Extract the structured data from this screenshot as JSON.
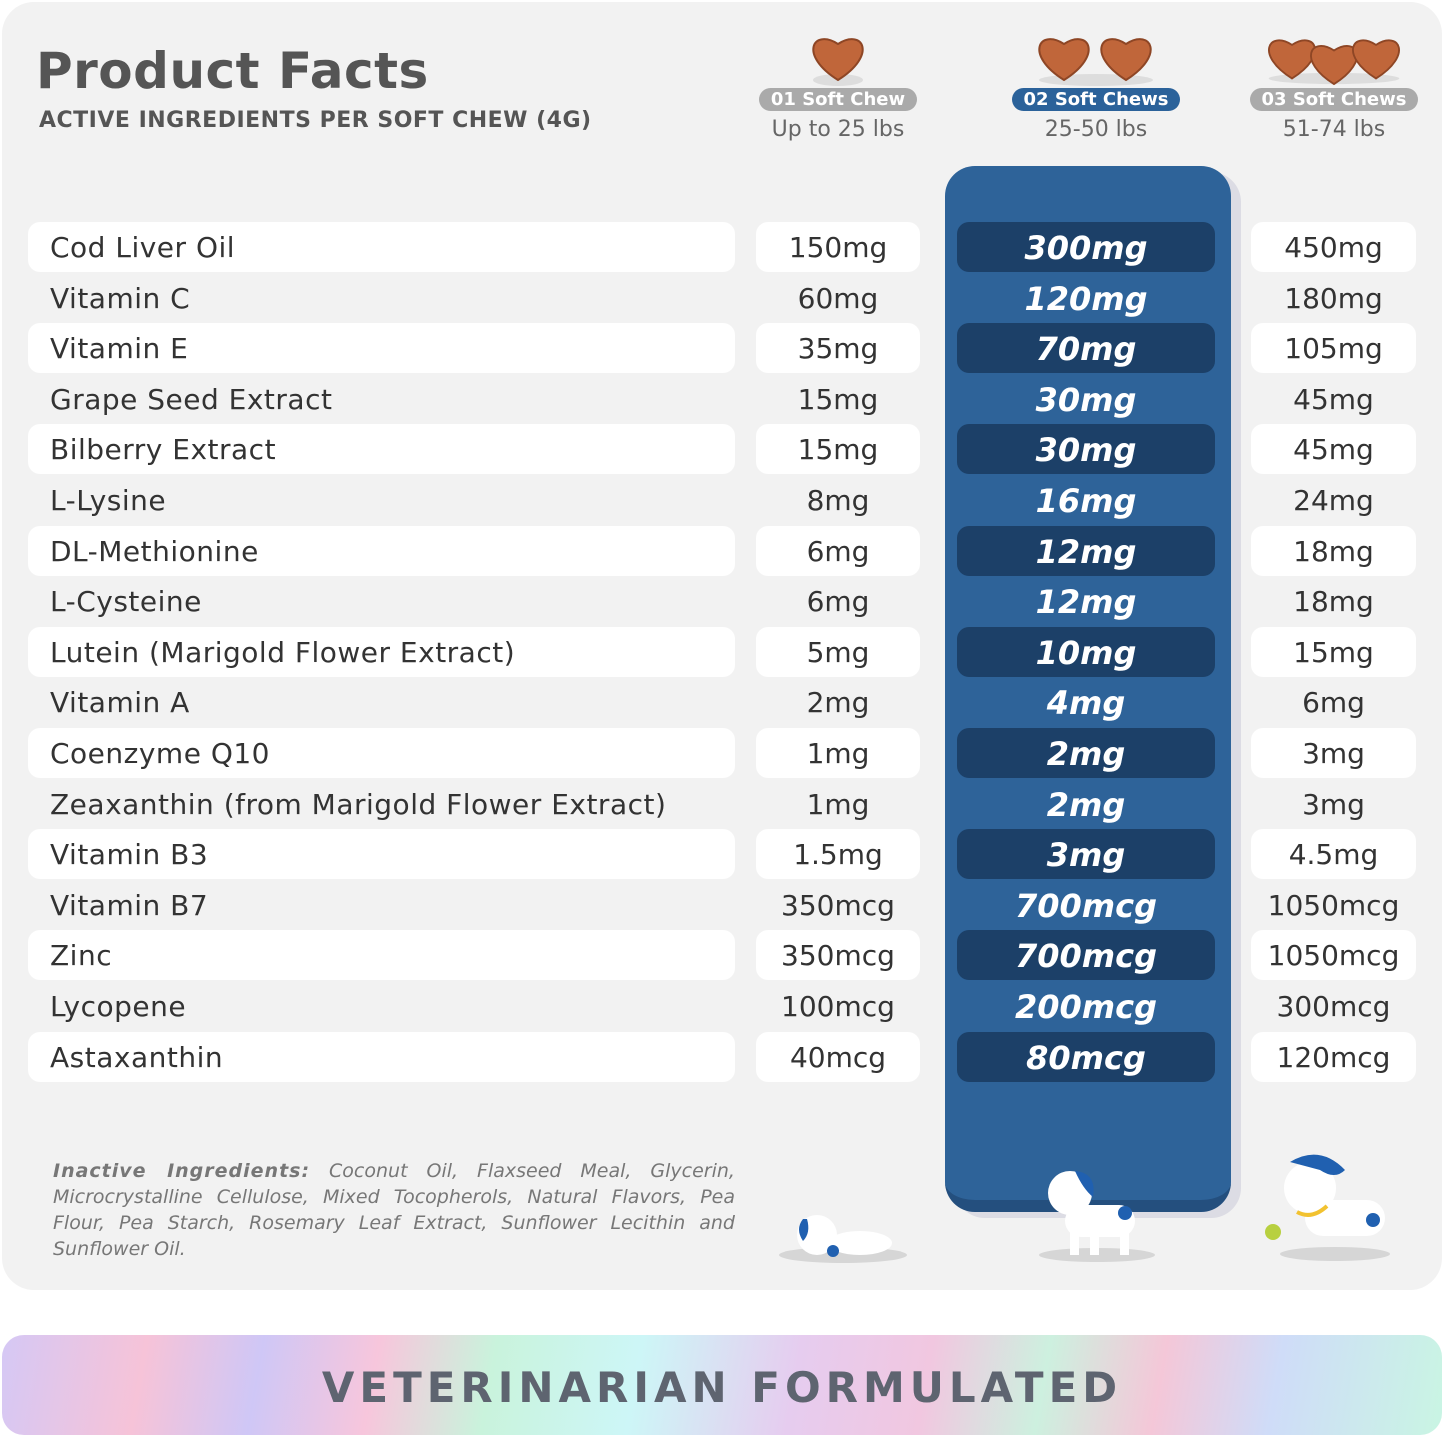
{
  "header": {
    "title": "Product Facts",
    "subtitle": "ACTIVE INGREDIENTS PER SOFT CHEW (4G)"
  },
  "columns": [
    {
      "label": "01 Soft Chew",
      "weight": "Up to 25 lbs",
      "chews": 1,
      "active": false
    },
    {
      "label": "02 Soft Chews",
      "weight": "25-50 lbs",
      "chews": 2,
      "active": true
    },
    {
      "label": "03 Soft Chews",
      "weight": "51-74 lbs",
      "chews": 3,
      "active": false
    }
  ],
  "rows": [
    {
      "name": "Cod Liver Oil",
      "v1": "150mg",
      "v2": "300mg",
      "v3": "450mg"
    },
    {
      "name": "Vitamin C",
      "v1": "60mg",
      "v2": "120mg",
      "v3": "180mg"
    },
    {
      "name": "Vitamin E",
      "v1": "35mg",
      "v2": "70mg",
      "v3": "105mg"
    },
    {
      "name": "Grape Seed Extract",
      "v1": "15mg",
      "v2": "30mg",
      "v3": "45mg"
    },
    {
      "name": "Bilberry Extract",
      "v1": "15mg",
      "v2": "30mg",
      "v3": "45mg"
    },
    {
      "name": "L-Lysine",
      "v1": "8mg",
      "v2": "16mg",
      "v3": "24mg"
    },
    {
      "name": "DL-Methionine",
      "v1": "6mg",
      "v2": "12mg",
      "v3": "18mg"
    },
    {
      "name": "L-Cysteine",
      "v1": "6mg",
      "v2": "12mg",
      "v3": "18mg"
    },
    {
      "name": "Lutein (Marigold Flower Extract)",
      "v1": "5mg",
      "v2": "10mg",
      "v3": "15mg"
    },
    {
      "name": "Vitamin A",
      "v1": "2mg",
      "v2": "4mg",
      "v3": "6mg"
    },
    {
      "name": "Coenzyme Q10",
      "v1": "1mg",
      "v2": "2mg",
      "v3": "3mg"
    },
    {
      "name": "Zeaxanthin (from Marigold Flower Extract)",
      "v1": "1mg",
      "v2": "2mg",
      "v3": "3mg"
    },
    {
      "name": "Vitamin B3",
      "v1": "1.5mg",
      "v2": "3mg",
      "v3": "4.5mg"
    },
    {
      "name": "Vitamin B7",
      "v1": "350mcg",
      "v2": "700mcg",
      "v3": "1050mcg"
    },
    {
      "name": "Zinc",
      "v1": "350mcg",
      "v2": "700mcg",
      "v3": "1050mcg"
    },
    {
      "name": "Lycopene",
      "v1": "100mcg",
      "v2": "200mcg",
      "v3": "300mcg"
    },
    {
      "name": "Astaxanthin",
      "v1": "40mcg",
      "v2": "80mcg",
      "v3": "120mcg"
    }
  ],
  "inactive": {
    "label": "Inactive Ingredients:",
    "text": "Coconut Oil, Flaxseed Meal, Glycerin, Microcrystalline Cellulose, Mixed Tocopherols, Natural Flavors, Pea Flour, Pea Starch, Rosemary Leaf Extract, Sunflower Lecithin and Sunflower Oil."
  },
  "banner": {
    "text": "VETERINARIAN FORMULATED"
  },
  "colors": {
    "accent": "#2e6399",
    "accent_dark": "#1c4068",
    "card": "#f2f2f2",
    "chew": "#c0663a"
  }
}
